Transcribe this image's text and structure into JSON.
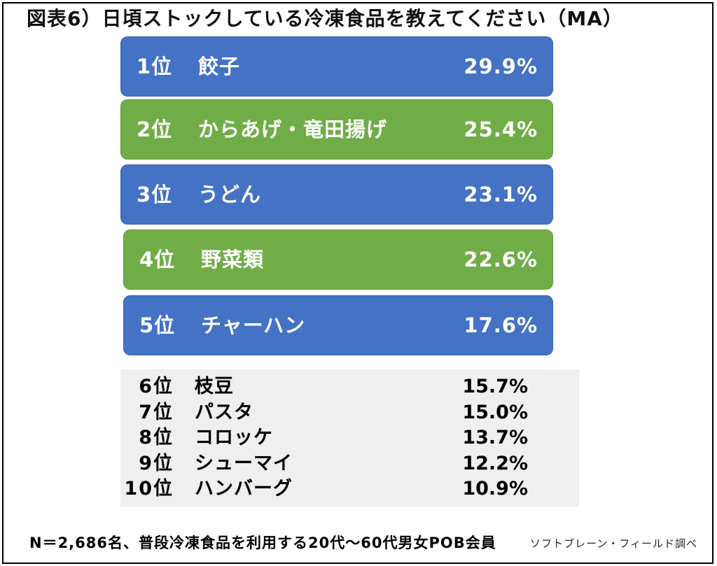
{
  "chart_data": {
    "type": "table",
    "title": "図表6）日頃ストックしている冷凍食品を教えてください（MA）",
    "unit": "%",
    "rows": [
      {
        "rank": "1位",
        "item": "餃子",
        "value": 29.9,
        "color": "#4472c4"
      },
      {
        "rank": "2位",
        "item": "からあげ・竜田揚げ",
        "value": 25.4,
        "color": "#70ad47"
      },
      {
        "rank": "3位",
        "item": "うどん",
        "value": 23.1,
        "color": "#4472c4"
      },
      {
        "rank": "4位",
        "item": "野菜類",
        "value": 22.6,
        "color": "#70ad47"
      },
      {
        "rank": "5位",
        "item": "チャーハン",
        "value": 17.6,
        "color": "#4472c4"
      },
      {
        "rank": "6位",
        "item": "枝豆",
        "value": 15.7
      },
      {
        "rank": "7位",
        "item": "パスタ",
        "value": 15.0
      },
      {
        "rank": "8位",
        "item": "コロッケ",
        "value": 13.7
      },
      {
        "rank": "9位",
        "item": "シューマイ",
        "value": 12.2
      },
      {
        "rank": "10位",
        "item": "ハンバーグ",
        "value": 10.9
      }
    ]
  },
  "footer": {
    "note": "N＝2,686名、普段冷凍食品を利用する20代～60代男女POB会員",
    "source": "ソフトブレーン・フィールド調べ"
  }
}
